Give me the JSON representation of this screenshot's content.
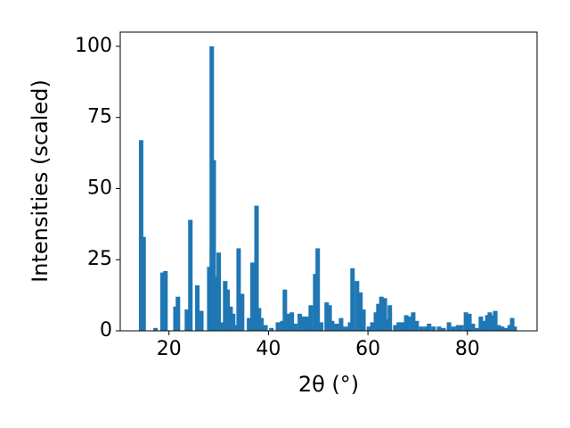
{
  "chart_data": {
    "type": "bar",
    "xlabel": "2θ (°)",
    "ylabel": "Intensities (scaled)",
    "x": [
      14.4,
      14.9,
      17.3,
      18.7,
      19.3,
      21.3,
      21.8,
      23.6,
      24.3,
      25.7,
      26.5,
      28.1,
      28.6,
      29.0,
      29.5,
      30.0,
      30.6,
      31.3,
      31.8,
      32.4,
      32.9,
      33.4,
      34.0,
      34.7,
      36.1,
      36.8,
      37.6,
      38.1,
      38.6,
      39.4,
      40.6,
      41.9,
      42.8,
      43.3,
      44.0,
      44.7,
      45.4,
      46.3,
      47.1,
      47.8,
      48.5,
      49.4,
      49.9,
      50.6,
      51.7,
      52.3,
      52.8,
      53.7,
      54.6,
      55.5,
      56.4,
      56.9,
      57.8,
      58.5,
      59.1,
      60.2,
      60.9,
      61.6,
      62.1,
      62.7,
      63.4,
      63.9,
      64.4,
      65.5,
      66.2,
      67.0,
      67.7,
      68.2,
      69.1,
      69.8,
      70.7,
      71.6,
      72.3,
      73.2,
      74.3,
      75.2,
      76.3,
      77.2,
      78.1,
      78.8,
      79.7,
      80.4,
      81.1,
      82.0,
      82.7,
      83.4,
      84.0,
      84.5,
      85.1,
      85.6,
      86.3,
      87.0,
      87.7,
      88.5,
      89.0,
      89.5
    ],
    "values": [
      67,
      33,
      1,
      20.5,
      21,
      8.5,
      12,
      7.5,
      39,
      16,
      7,
      22.5,
      100,
      60,
      19,
      27.5,
      3,
      17.5,
      14.5,
      8.5,
      6,
      2,
      29,
      13,
      4.5,
      24,
      44,
      8,
      4.5,
      2,
      1,
      3,
      3.5,
      14.5,
      6,
      6.5,
      2.5,
      6,
      5,
      5,
      9,
      20,
      29,
      3,
      10,
      9,
      3.5,
      2.5,
      4.5,
      1.5,
      3,
      22,
      17.5,
      13.5,
      7.5,
      1.5,
      3,
      6.5,
      9.5,
      12,
      11.5,
      4,
      9,
      2,
      3,
      3,
      5.5,
      5,
      6.5,
      3.5,
      1.5,
      1.5,
      2.5,
      1.5,
      1.5,
      1,
      3,
      1.5,
      2,
      2,
      6.5,
      6,
      2.5,
      1,
      5,
      3.5,
      5.5,
      6.5,
      5.5,
      7,
      2,
      1.5,
      1,
      2,
      4.5,
      1.5
    ],
    "color": "#1f77b4",
    "xlim": [
      10.2,
      94
    ],
    "xticks": [
      20,
      40,
      60,
      80
    ],
    "ylim": [
      0,
      105
    ],
    "yticks": [
      0,
      25,
      50,
      75,
      100
    ],
    "grid": false
  }
}
